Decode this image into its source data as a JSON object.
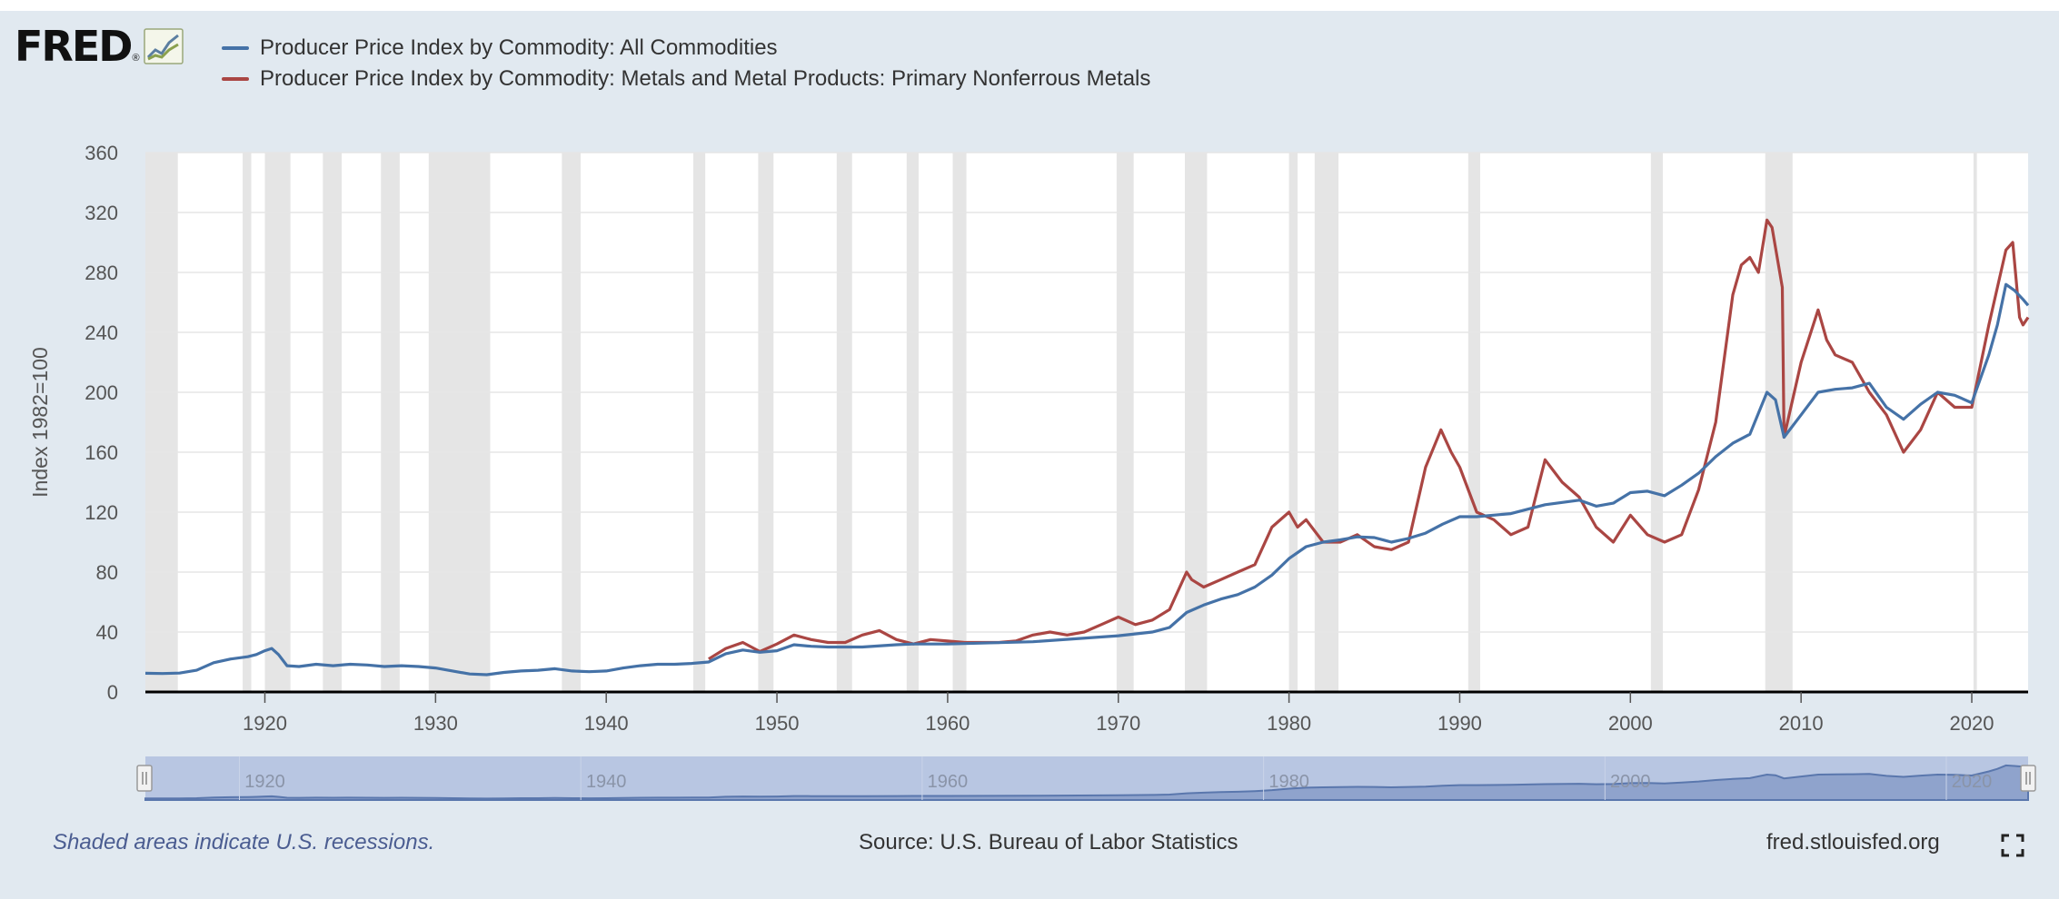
{
  "logo": {
    "text": "FRED",
    "reg": "®"
  },
  "footer": {
    "note": "Shaded areas indicate U.S. recessions.",
    "source": "Source: U.S. Bureau of Labor Statistics",
    "site": "fred.stlouisfed.org"
  },
  "icons": {
    "fullscreen": "fullscreen-icon",
    "logo": "fred-chart-icon"
  },
  "colors": {
    "all_commodities": "#4572a7",
    "nonferrous": "#aa4643",
    "recession": "#e5e5e5",
    "background": "#e1e9f0",
    "navigator_fill": "#8fa3cc"
  },
  "chart_data": {
    "type": "line",
    "title": "",
    "xlabel": "",
    "ylabel": "Index 1982=100",
    "xlim": [
      1913.0,
      2023.3
    ],
    "ylim": [
      0,
      360
    ],
    "y_ticks": [
      0,
      40,
      80,
      120,
      160,
      200,
      240,
      280,
      320,
      360
    ],
    "x_ticks": [
      1920,
      1930,
      1940,
      1950,
      1960,
      1970,
      1980,
      1990,
      2000,
      2010,
      2020
    ],
    "navigator_ticks": [
      1920,
      1940,
      1960,
      1980,
      2000,
      2020
    ],
    "grid": true,
    "legend_position": "top-left",
    "recessions": [
      [
        1913.0,
        1914.9
      ],
      [
        1918.7,
        1919.2
      ],
      [
        1920.0,
        1921.5
      ],
      [
        1923.4,
        1924.5
      ],
      [
        1926.8,
        1927.9
      ],
      [
        1929.6,
        1933.2
      ],
      [
        1937.4,
        1938.5
      ],
      [
        1945.1,
        1945.8
      ],
      [
        1948.9,
        1949.8
      ],
      [
        1953.5,
        1954.4
      ],
      [
        1957.6,
        1958.3
      ],
      [
        1960.3,
        1961.1
      ],
      [
        1969.9,
        1970.9
      ],
      [
        1973.9,
        1975.2
      ],
      [
        1980.0,
        1980.5
      ],
      [
        1981.5,
        1982.9
      ],
      [
        1990.5,
        1991.2
      ],
      [
        2001.2,
        2001.9
      ],
      [
        2007.9,
        2009.5
      ],
      [
        2020.1,
        2020.3
      ]
    ],
    "series": [
      {
        "name": "Producer Price Index by Commodity: All Commodities",
        "color": "#4572a7",
        "x": [
          1913,
          1914,
          1915,
          1916,
          1917,
          1918,
          1919,
          1919.5,
          1920,
          1920.4,
          1920.8,
          1921.3,
          1922,
          1923,
          1924,
          1925,
          1926,
          1927,
          1928,
          1929,
          1930,
          1931,
          1932,
          1933,
          1934,
          1935,
          1936,
          1937,
          1938,
          1939,
          1940,
          1941,
          1942,
          1943,
          1944,
          1945,
          1946,
          1947,
          1948,
          1949,
          1950,
          1951,
          1952,
          1953,
          1955,
          1957,
          1958,
          1960,
          1965,
          1970,
          1972,
          1973,
          1974,
          1975,
          1976,
          1977,
          1978,
          1979,
          1980,
          1981,
          1982,
          1983,
          1984,
          1985,
          1986,
          1987,
          1988,
          1989,
          1990,
          1991,
          1993,
          1995,
          1997,
          1998,
          1999,
          2000,
          2001,
          2002,
          2003,
          2004,
          2005,
          2006,
          2007,
          2008,
          2008.5,
          2009,
          2010,
          2011,
          2012,
          2013,
          2014,
          2015,
          2016,
          2017,
          2018,
          2019,
          2020,
          2021,
          2021.5,
          2022,
          2022.5,
          2023,
          2023.3
        ],
        "y": [
          12.5,
          12.3,
          12.6,
          14.5,
          19.5,
          22.0,
          23.5,
          25.0,
          27.5,
          29.0,
          25.0,
          17.5,
          17.0,
          18.5,
          17.5,
          18.5,
          18.0,
          17.0,
          17.5,
          17.0,
          16.0,
          14.0,
          12.0,
          11.5,
          13.0,
          14.0,
          14.5,
          15.5,
          14.0,
          13.5,
          14.0,
          16.0,
          17.5,
          18.5,
          18.5,
          19.0,
          20.0,
          25.5,
          28.0,
          26.5,
          27.5,
          31.5,
          30.5,
          30.0,
          30.0,
          31.5,
          32.0,
          32.0,
          33.5,
          37.5,
          40.0,
          43.0,
          53.0,
          58.0,
          62.0,
          65.0,
          70.0,
          78.0,
          89.0,
          97.0,
          100.0,
          101.5,
          103.5,
          103.0,
          100.0,
          102.5,
          106.0,
          112.0,
          117.0,
          117.0,
          119.0,
          125.0,
          128.0,
          124.0,
          126.0,
          133.0,
          134.0,
          131.0,
          138.0,
          146.0,
          157.0,
          166.0,
          172.0,
          200.0,
          195.0,
          170.0,
          185.0,
          200.0,
          202.0,
          203.0,
          206.0,
          190.0,
          182.0,
          192.0,
          200.0,
          198.0,
          193.0,
          225.0,
          245.0,
          272.0,
          268.0,
          262.0,
          258.0
        ]
      },
      {
        "name": "Producer Price Index by Commodity: Metals and Metal Products: Primary Nonferrous Metals",
        "color": "#aa4643",
        "x": [
          1946,
          1947,
          1948,
          1949,
          1950,
          1951,
          1952,
          1953,
          1954,
          1955,
          1956,
          1957,
          1958,
          1959,
          1960,
          1961,
          1962,
          1963,
          1964,
          1965,
          1966,
          1967,
          1968,
          1969,
          1970,
          1971,
          1972,
          1973,
          1974,
          1974.3,
          1975,
          1976,
          1977,
          1978,
          1979,
          1980,
          1980.5,
          1981,
          1982,
          1983,
          1984,
          1985,
          1986,
          1987,
          1988,
          1988.9,
          1989.5,
          1990,
          1991,
          1992,
          1993,
          1994,
          1995,
          1996,
          1997,
          1998,
          1999,
          2000,
          2001,
          2002,
          2003,
          2004,
          2005,
          2006,
          2006.5,
          2007,
          2007.5,
          2008,
          2008.3,
          2008.9,
          2009,
          2010,
          2011,
          2011.5,
          2012,
          2013,
          2014,
          2015,
          2016,
          2017,
          2018,
          2019,
          2020,
          2021,
          2022,
          2022.4,
          2022.8,
          2023,
          2023.3
        ],
        "y": [
          22,
          29,
          33,
          27,
          32,
          38,
          35,
          33,
          33,
          38,
          41,
          35,
          32,
          35,
          34,
          33,
          33,
          33,
          34,
          38,
          40,
          38,
          40,
          45,
          50,
          45,
          48,
          55,
          80,
          75,
          70,
          75,
          80,
          85,
          110,
          120,
          110,
          115,
          100,
          100,
          105,
          97,
          95,
          100,
          150,
          175,
          160,
          150,
          120,
          115,
          105,
          110,
          155,
          140,
          130,
          110,
          100,
          118,
          105,
          100,
          105,
          135,
          180,
          265,
          285,
          290,
          280,
          315,
          310,
          270,
          170,
          220,
          255,
          235,
          225,
          220,
          200,
          185,
          160,
          175,
          200,
          190,
          190,
          245,
          295,
          300,
          250,
          245,
          250
        ]
      }
    ]
  }
}
